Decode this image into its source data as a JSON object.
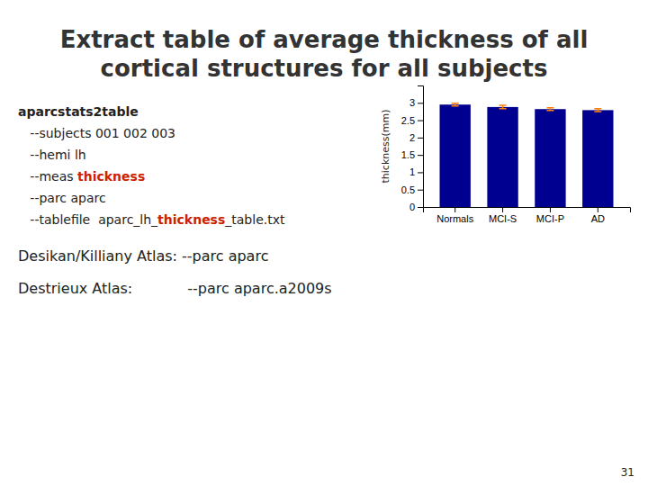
{
  "chart_data": {
    "type": "bar",
    "title": "Extract table of average thickness of all",
    "subtitle": "cortical structures for all subjects",
    "categories": [
      "Normals",
      "MCI-S",
      "MCI-P",
      "AD"
    ],
    "values": [
      2.95,
      2.88,
      2.82,
      2.79
    ],
    "errors": [
      0.04,
      0.05,
      0.04,
      0.04
    ],
    "color": "#000090",
    "ylim": [
      0,
      3.5
    ],
    "yticks": [
      0,
      0.5,
      1,
      1.5,
      2,
      2.5,
      3
    ],
    "ylabel": "thickness(mm)",
    "grid": false,
    "annotations": [
      [
        {
          "text": "aparcstats2table"
        }
      ],
      [
        {
          "text": "   --subjects 001 002 003"
        }
      ],
      [
        {
          "text": "   --hemi lh"
        }
      ],
      [
        {
          "text": "   --meas "
        },
        {
          "text": "thickness",
          "color": "#cc2200"
        }
      ],
      [
        {
          "text": "   --parc aparc"
        }
      ],
      [
        {
          "text": "   --tablefile  aparc_lh_"
        },
        {
          "text": "thickness",
          "color": "#cc2200"
        },
        {
          "text": "_table.txt"
        }
      ],
      [
        {
          "text": "Desikan/Killiany Atlas:"
        },
        {
          "text": " --parc aparc"
        }
      ],
      [
        {
          "text": "Destrieux Atlas:"
        },
        {
          "text": "            --parc aparc.a2009s"
        }
      ],
      [
        {
          "text": "31"
        }
      ]
    ]
  }
}
